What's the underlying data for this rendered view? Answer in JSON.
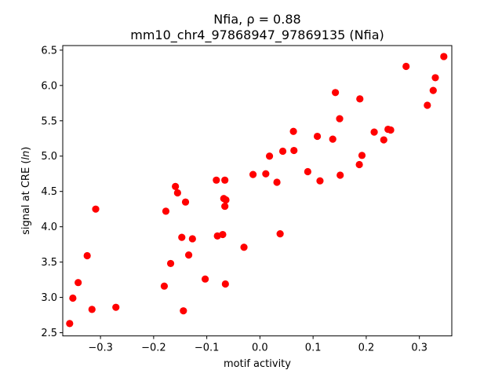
{
  "chart_data": {
    "type": "scatter",
    "title_line1": "Nfia, ρ = 0.88",
    "title_line2": "mm10_chr4_97868947_97869135 (Nfia)",
    "xlabel": "motif activity",
    "ylabel": "signal at CRE (ln)",
    "xlim": [
      -0.371,
      0.361
    ],
    "ylim": [
      2.455,
      6.565
    ],
    "x_ticks": [
      -0.3,
      -0.2,
      -0.1,
      0.0,
      0.1,
      0.2,
      0.3
    ],
    "x_tick_labels": [
      "−0.3",
      "−0.2",
      "−0.1",
      "0.0",
      "0.1",
      "0.2",
      "0.3"
    ],
    "y_ticks": [
      2.5,
      3.0,
      3.5,
      4.0,
      4.5,
      5.0,
      5.5,
      6.0,
      6.5
    ],
    "y_tick_labels": [
      "2.5",
      "3.0",
      "3.5",
      "4.0",
      "4.5",
      "5.0",
      "5.5",
      "6.0",
      "6.5"
    ],
    "grid": false,
    "marker_color": "#ff0000",
    "points": [
      {
        "x": -0.358,
        "y": 2.63
      },
      {
        "x": -0.352,
        "y": 2.99
      },
      {
        "x": -0.342,
        "y": 3.21
      },
      {
        "x": -0.325,
        "y": 3.59
      },
      {
        "x": -0.316,
        "y": 2.83
      },
      {
        "x": -0.309,
        "y": 4.25
      },
      {
        "x": -0.271,
        "y": 2.86
      },
      {
        "x": -0.18,
        "y": 3.16
      },
      {
        "x": -0.177,
        "y": 4.22
      },
      {
        "x": -0.168,
        "y": 3.48
      },
      {
        "x": -0.159,
        "y": 4.57
      },
      {
        "x": -0.155,
        "y": 4.48
      },
      {
        "x": -0.147,
        "y": 3.85
      },
      {
        "x": -0.144,
        "y": 2.81
      },
      {
        "x": -0.14,
        "y": 4.35
      },
      {
        "x": -0.134,
        "y": 3.6
      },
      {
        "x": -0.127,
        "y": 3.83
      },
      {
        "x": -0.103,
        "y": 3.26
      },
      {
        "x": -0.082,
        "y": 4.66
      },
      {
        "x": -0.08,
        "y": 3.87
      },
      {
        "x": -0.07,
        "y": 3.89
      },
      {
        "x": -0.068,
        "y": 4.4
      },
      {
        "x": -0.066,
        "y": 4.29
      },
      {
        "x": -0.066,
        "y": 4.66
      },
      {
        "x": -0.065,
        "y": 3.19
      },
      {
        "x": -0.064,
        "y": 4.38
      },
      {
        "x": -0.03,
        "y": 3.71
      },
      {
        "x": -0.013,
        "y": 4.74
      },
      {
        "x": 0.011,
        "y": 4.75
      },
      {
        "x": 0.018,
        "y": 5.0
      },
      {
        "x": 0.032,
        "y": 4.63
      },
      {
        "x": 0.038,
        "y": 3.9
      },
      {
        "x": 0.043,
        "y": 5.07
      },
      {
        "x": 0.063,
        "y": 5.35
      },
      {
        "x": 0.064,
        "y": 5.08
      },
      {
        "x": 0.09,
        "y": 4.78
      },
      {
        "x": 0.108,
        "y": 5.28
      },
      {
        "x": 0.113,
        "y": 4.65
      },
      {
        "x": 0.137,
        "y": 5.24
      },
      {
        "x": 0.142,
        "y": 5.9
      },
      {
        "x": 0.15,
        "y": 5.53
      },
      {
        "x": 0.151,
        "y": 4.73
      },
      {
        "x": 0.187,
        "y": 4.88
      },
      {
        "x": 0.188,
        "y": 5.81
      },
      {
        "x": 0.192,
        "y": 5.01
      },
      {
        "x": 0.215,
        "y": 5.34
      },
      {
        "x": 0.233,
        "y": 5.23
      },
      {
        "x": 0.241,
        "y": 5.38
      },
      {
        "x": 0.246,
        "y": 5.37
      },
      {
        "x": 0.275,
        "y": 6.27
      },
      {
        "x": 0.315,
        "y": 5.72
      },
      {
        "x": 0.326,
        "y": 5.93
      },
      {
        "x": 0.33,
        "y": 6.11
      },
      {
        "x": 0.346,
        "y": 6.41
      }
    ]
  }
}
